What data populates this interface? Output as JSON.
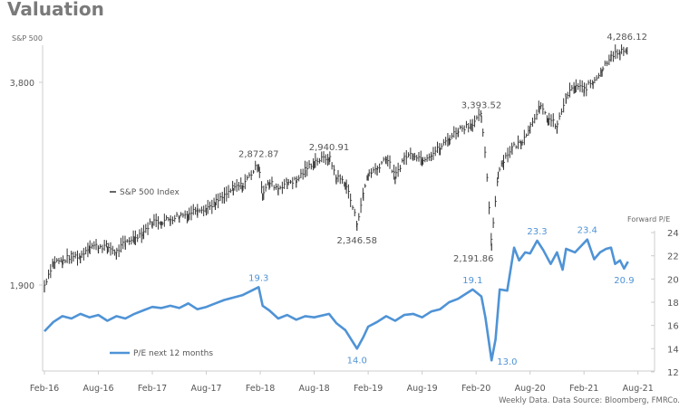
{
  "title": "Valuation",
  "footer": "Weekly Data. Data Source: Bloomberg, FMRCo.",
  "chart_data": {
    "type": "line",
    "x_ticks": [
      "Feb-16",
      "Aug-16",
      "Feb-17",
      "Aug-17",
      "Feb-18",
      "Aug-18",
      "Feb-19",
      "Aug-19",
      "Feb-20",
      "Aug-20",
      "Feb-21",
      "Aug-21"
    ],
    "left_axis": {
      "label": "S&P 500",
      "scale": "log",
      "ticks": [
        1900,
        3800
      ],
      "tick_labels": [
        "1,900",
        "3,800"
      ]
    },
    "right_axis": {
      "label": "Forward P/E",
      "ylim": [
        12,
        24
      ],
      "ticks": [
        12,
        14,
        16,
        18,
        20,
        22,
        24
      ]
    },
    "grid": false,
    "colors": {
      "sp500": "#333333",
      "pe": "#4f93d6",
      "axis": "#cccccc",
      "text": "#555555"
    },
    "series": [
      {
        "name": "S&P 500 Index",
        "axis": "left",
        "style": "weekly-bars",
        "points": [
          [
            "2016-02-01",
            1900
          ],
          [
            "2016-03-01",
            2060
          ],
          [
            "2016-04-01",
            2065
          ],
          [
            "2016-05-01",
            2097
          ],
          [
            "2016-06-01",
            2099
          ],
          [
            "2016-07-01",
            2174
          ],
          [
            "2016-08-01",
            2171
          ],
          [
            "2016-09-01",
            2168
          ],
          [
            "2016-10-01",
            2126
          ],
          [
            "2016-11-01",
            2199
          ],
          [
            "2016-12-01",
            2239
          ],
          [
            "2017-01-01",
            2279
          ],
          [
            "2017-02-01",
            2364
          ],
          [
            "2017-03-01",
            2363
          ],
          [
            "2017-04-01",
            2384
          ],
          [
            "2017-05-01",
            2412
          ],
          [
            "2017-06-01",
            2423
          ],
          [
            "2017-07-01",
            2470
          ],
          [
            "2017-08-01",
            2472
          ],
          [
            "2017-09-01",
            2519
          ],
          [
            "2017-10-01",
            2575
          ],
          [
            "2017-11-01",
            2648
          ],
          [
            "2017-12-01",
            2674
          ],
          [
            "2018-01-26",
            2872.87
          ],
          [
            "2018-02-09",
            2600
          ],
          [
            "2018-03-01",
            2700
          ],
          [
            "2018-04-01",
            2648
          ],
          [
            "2018-05-01",
            2705
          ],
          [
            "2018-06-01",
            2718
          ],
          [
            "2018-07-01",
            2816
          ],
          [
            "2018-08-01",
            2902
          ],
          [
            "2018-09-21",
            2940.91
          ],
          [
            "2018-10-15",
            2750
          ],
          [
            "2018-11-15",
            2700
          ],
          [
            "2018-12-24",
            2346.58
          ],
          [
            "2019-01-15",
            2600
          ],
          [
            "2019-02-01",
            2784
          ],
          [
            "2019-03-01",
            2834
          ],
          [
            "2019-04-01",
            2946
          ],
          [
            "2019-05-01",
            2752
          ],
          [
            "2019-06-01",
            2942
          ],
          [
            "2019-07-01",
            2980
          ],
          [
            "2019-08-01",
            2926
          ],
          [
            "2019-09-01",
            2977
          ],
          [
            "2019-10-01",
            3038
          ],
          [
            "2019-11-01",
            3141
          ],
          [
            "2019-12-01",
            3231
          ],
          [
            "2020-01-15",
            3300
          ],
          [
            "2020-02-19",
            3393.52
          ],
          [
            "2020-03-23",
            2191.86
          ],
          [
            "2020-04-15",
            2800
          ],
          [
            "2020-05-01",
            2912
          ],
          [
            "2020-06-01",
            3044
          ],
          [
            "2020-07-01",
            3100
          ],
          [
            "2020-08-01",
            3271
          ],
          [
            "2020-09-02",
            3500
          ],
          [
            "2020-10-01",
            3363
          ],
          [
            "2020-11-01",
            3270
          ],
          [
            "2020-12-01",
            3622
          ],
          [
            "2021-01-01",
            3756
          ],
          [
            "2021-02-01",
            3714
          ],
          [
            "2021-03-01",
            3811
          ],
          [
            "2021-04-01",
            3973
          ],
          [
            "2021-05-01",
            4181
          ],
          [
            "2021-06-01",
            4204
          ],
          [
            "2021-06-25",
            4286.12
          ]
        ]
      },
      {
        "name": "P/E next 12 months",
        "axis": "right",
        "style": "line",
        "points": [
          [
            "2016-02-01",
            15.5
          ],
          [
            "2016-03-01",
            16.3
          ],
          [
            "2016-04-01",
            16.8
          ],
          [
            "2016-05-01",
            16.6
          ],
          [
            "2016-06-01",
            17.0
          ],
          [
            "2016-07-01",
            16.7
          ],
          [
            "2016-08-01",
            16.9
          ],
          [
            "2016-09-01",
            16.4
          ],
          [
            "2016-10-01",
            16.8
          ],
          [
            "2016-11-01",
            16.6
          ],
          [
            "2016-12-01",
            17.0
          ],
          [
            "2017-01-01",
            17.3
          ],
          [
            "2017-02-01",
            17.6
          ],
          [
            "2017-03-01",
            17.5
          ],
          [
            "2017-04-01",
            17.7
          ],
          [
            "2017-05-01",
            17.5
          ],
          [
            "2017-06-01",
            17.9
          ],
          [
            "2017-07-01",
            17.4
          ],
          [
            "2017-08-01",
            17.6
          ],
          [
            "2017-09-01",
            17.9
          ],
          [
            "2017-10-01",
            18.2
          ],
          [
            "2017-11-01",
            18.4
          ],
          [
            "2017-12-01",
            18.6
          ],
          [
            "2018-01-26",
            19.3
          ],
          [
            "2018-02-09",
            17.7
          ],
          [
            "2018-03-01",
            17.3
          ],
          [
            "2018-04-01",
            16.6
          ],
          [
            "2018-05-01",
            16.9
          ],
          [
            "2018-06-01",
            16.5
          ],
          [
            "2018-07-01",
            16.8
          ],
          [
            "2018-08-01",
            16.7
          ],
          [
            "2018-09-21",
            17.0
          ],
          [
            "2018-10-15",
            16.2
          ],
          [
            "2018-11-15",
            15.6
          ],
          [
            "2018-12-24",
            14.0
          ],
          [
            "2019-01-15",
            15.0
          ],
          [
            "2019-02-01",
            15.9
          ],
          [
            "2019-03-01",
            16.3
          ],
          [
            "2019-04-01",
            16.8
          ],
          [
            "2019-05-01",
            16.4
          ],
          [
            "2019-06-01",
            16.9
          ],
          [
            "2019-07-01",
            17.0
          ],
          [
            "2019-08-01",
            16.7
          ],
          [
            "2019-09-01",
            17.2
          ],
          [
            "2019-10-01",
            17.4
          ],
          [
            "2019-11-01",
            18.0
          ],
          [
            "2019-12-01",
            18.3
          ],
          [
            "2020-01-20",
            19.1
          ],
          [
            "2020-02-19",
            18.5
          ],
          [
            "2020-03-02",
            16.7
          ],
          [
            "2020-03-23",
            13.0
          ],
          [
            "2020-04-06",
            14.8
          ],
          [
            "2020-04-20",
            19.1
          ],
          [
            "2020-05-15",
            19.0
          ],
          [
            "2020-06-08",
            22.7
          ],
          [
            "2020-06-25",
            21.6
          ],
          [
            "2020-07-15",
            22.3
          ],
          [
            "2020-08-01",
            22.2
          ],
          [
            "2020-08-25",
            23.3
          ],
          [
            "2020-09-15",
            22.5
          ],
          [
            "2020-10-10",
            21.3
          ],
          [
            "2020-11-01",
            22.3
          ],
          [
            "2020-11-20",
            20.8
          ],
          [
            "2020-12-01",
            22.6
          ],
          [
            "2021-01-01",
            22.3
          ],
          [
            "2021-01-20",
            22.8
          ],
          [
            "2021-02-12",
            23.4
          ],
          [
            "2021-03-05",
            21.7
          ],
          [
            "2021-03-25",
            22.3
          ],
          [
            "2021-04-15",
            22.6
          ],
          [
            "2021-05-01",
            22.7
          ],
          [
            "2021-05-15",
            21.3
          ],
          [
            "2021-06-01",
            21.6
          ],
          [
            "2021-06-15",
            20.9
          ],
          [
            "2021-06-28",
            21.5
          ]
        ]
      }
    ],
    "annotations": [
      {
        "series": "S&P 500 Index",
        "date": "2018-01-26",
        "text": "2,872.87",
        "pos": "above"
      },
      {
        "series": "S&P 500 Index",
        "date": "2018-09-21",
        "text": "2,940.91",
        "pos": "above"
      },
      {
        "series": "S&P 500 Index",
        "date": "2018-12-24",
        "text": "2,346.58",
        "pos": "below"
      },
      {
        "series": "S&P 500 Index",
        "date": "2020-02-19",
        "text": "3,393.52",
        "pos": "above"
      },
      {
        "series": "S&P 500 Index",
        "date": "2020-03-23",
        "text": "2,191.86",
        "pos": "right"
      },
      {
        "series": "S&P 500 Index",
        "date": "2021-06-25",
        "text": "4,286.12",
        "pos": "above"
      },
      {
        "series": "P/E next 12 months",
        "date": "2018-01-26",
        "text": "19.3",
        "pos": "above"
      },
      {
        "series": "P/E next 12 months",
        "date": "2018-12-24",
        "text": "14.0",
        "pos": "below"
      },
      {
        "series": "P/E next 12 months",
        "date": "2020-01-20",
        "text": "19.1",
        "pos": "above"
      },
      {
        "series": "P/E next 12 months",
        "date": "2020-03-23",
        "text": "13.0",
        "pos": "right"
      },
      {
        "series": "P/E next 12 months",
        "date": "2020-08-25",
        "text": "23.3",
        "pos": "above"
      },
      {
        "series": "P/E next 12 months",
        "date": "2021-02-12",
        "text": "23.4",
        "pos": "above"
      },
      {
        "series": "P/E next 12 months",
        "date": "2021-06-15",
        "text": "20.9",
        "pos": "below"
      }
    ],
    "legend": [
      {
        "text": "S&P 500 Index",
        "placement": "upper-left"
      },
      {
        "text": "P/E next 12 months",
        "placement": "lower-left"
      }
    ]
  }
}
